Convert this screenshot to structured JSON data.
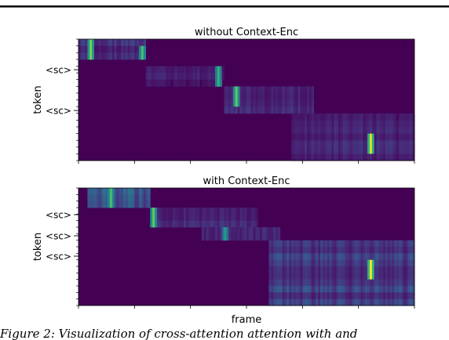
{
  "caption": "Figure 2: Visualization of cross-attention attention with and",
  "colors": {
    "colormap": [
      "#440154",
      "#482878",
      "#3e4989",
      "#31688e",
      "#26828e",
      "#1f9e89",
      "#35b779",
      "#6ece58",
      "#b5de2b",
      "#fde725"
    ],
    "background": "#440154",
    "text": "#000000"
  },
  "chart_data": [
    {
      "type": "heatmap",
      "title": "without Context-Enc",
      "xlabel": "",
      "ylabel": "token",
      "y_tick_labels": [
        "<sc>",
        "<sc>"
      ],
      "n_tokens": 18,
      "n_frames": 150,
      "blocks": [
        {
          "rows": [
            0,
            3
          ],
          "frames": [
            0,
            30
          ],
          "mean": 0.15,
          "peaks": [
            {
              "row": 1,
              "frame": 5,
              "v": 0.8
            },
            {
              "row": 2,
              "frame": 28,
              "v": 0.7
            }
          ]
        },
        {
          "rows": [
            4,
            7
          ],
          "frames": [
            30,
            65
          ],
          "mean": 0.1,
          "peaks": [
            {
              "row": 5,
              "frame": 62,
              "v": 0.65
            }
          ]
        },
        {
          "rows": [
            7,
            11
          ],
          "frames": [
            65,
            105
          ],
          "mean": 0.12,
          "peaks": [
            {
              "row": 8,
              "frame": 70,
              "v": 0.75
            }
          ]
        },
        {
          "rows": [
            11,
            18
          ],
          "frames": [
            95,
            150
          ],
          "mean": 0.12,
          "peaks": [
            {
              "row": 15,
              "frame": 130,
              "v": 0.95
            }
          ]
        }
      ]
    },
    {
      "type": "heatmap",
      "title": "with Context-Enc",
      "xlabel": "frame",
      "ylabel": "token",
      "y_tick_labels": [
        "<sc>",
        "<sc>",
        "<sc>"
      ],
      "n_tokens": 18,
      "n_frames": 150,
      "blocks": [
        {
          "rows": [
            0,
            3
          ],
          "frames": [
            4,
            32
          ],
          "mean": 0.3,
          "peaks": [
            {
              "row": 1,
              "frame": 14,
              "v": 0.7
            }
          ]
        },
        {
          "rows": [
            3,
            6
          ],
          "frames": [
            32,
            80
          ],
          "mean": 0.15,
          "peaks": [
            {
              "row": 4,
              "frame": 33,
              "v": 0.75
            }
          ]
        },
        {
          "rows": [
            6,
            8
          ],
          "frames": [
            55,
            90
          ],
          "mean": 0.18,
          "peaks": [
            {
              "row": 7,
              "frame": 65,
              "v": 0.55
            }
          ]
        },
        {
          "rows": [
            8,
            18
          ],
          "frames": [
            85,
            150
          ],
          "mean": 0.2,
          "peaks": [
            {
              "row": 12,
              "frame": 130,
              "v": 1.0
            }
          ]
        }
      ]
    }
  ]
}
